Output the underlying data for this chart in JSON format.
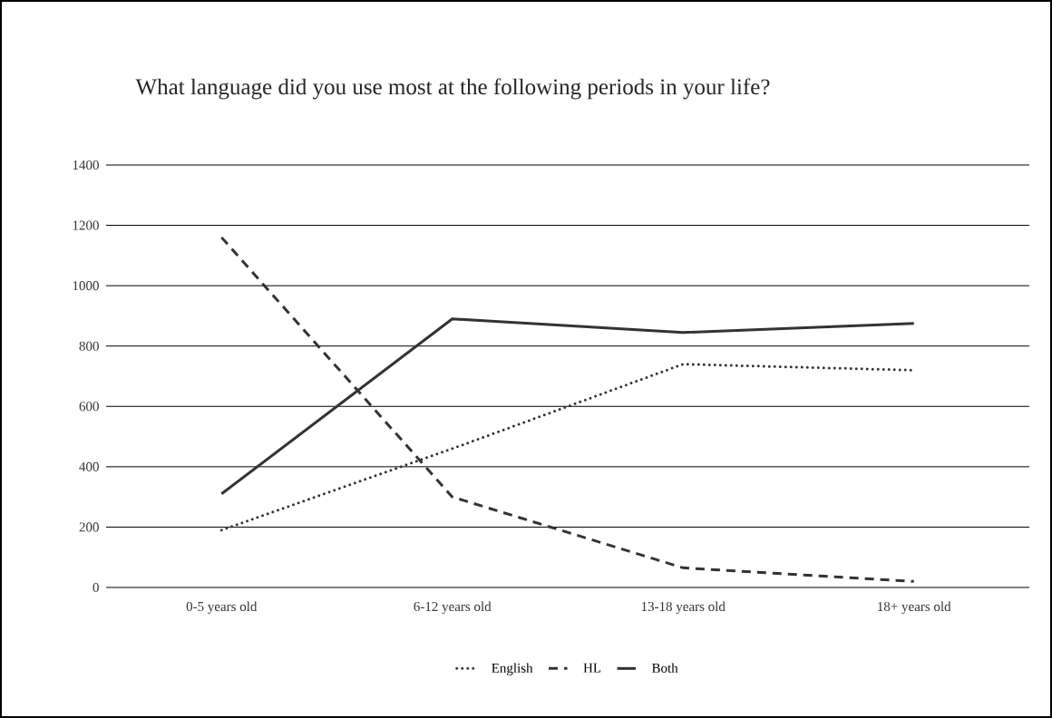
{
  "chart_data": {
    "type": "line",
    "title": "What language did you use most at the following periods in your life?",
    "categories": [
      "0-5 years old",
      "6-12 years old",
      "13-18 years old",
      "18+ years old"
    ],
    "series": [
      {
        "name": "English",
        "color": "#333333",
        "line_style": "dotted",
        "values": [
          190,
          460,
          740,
          720
        ]
      },
      {
        "name": "HL",
        "color": "#333333",
        "line_style": "dashed",
        "values": [
          1160,
          300,
          65,
          20
        ]
      },
      {
        "name": "Both",
        "color": "#333333",
        "line_style": "solid",
        "values": [
          310,
          890,
          845,
          875
        ]
      }
    ],
    "ylim": [
      0,
      1400
    ],
    "yticks": [
      0,
      200,
      400,
      600,
      800,
      1000,
      1200,
      1400
    ],
    "grid": "y",
    "legend": "bottom",
    "marker": "none"
  }
}
